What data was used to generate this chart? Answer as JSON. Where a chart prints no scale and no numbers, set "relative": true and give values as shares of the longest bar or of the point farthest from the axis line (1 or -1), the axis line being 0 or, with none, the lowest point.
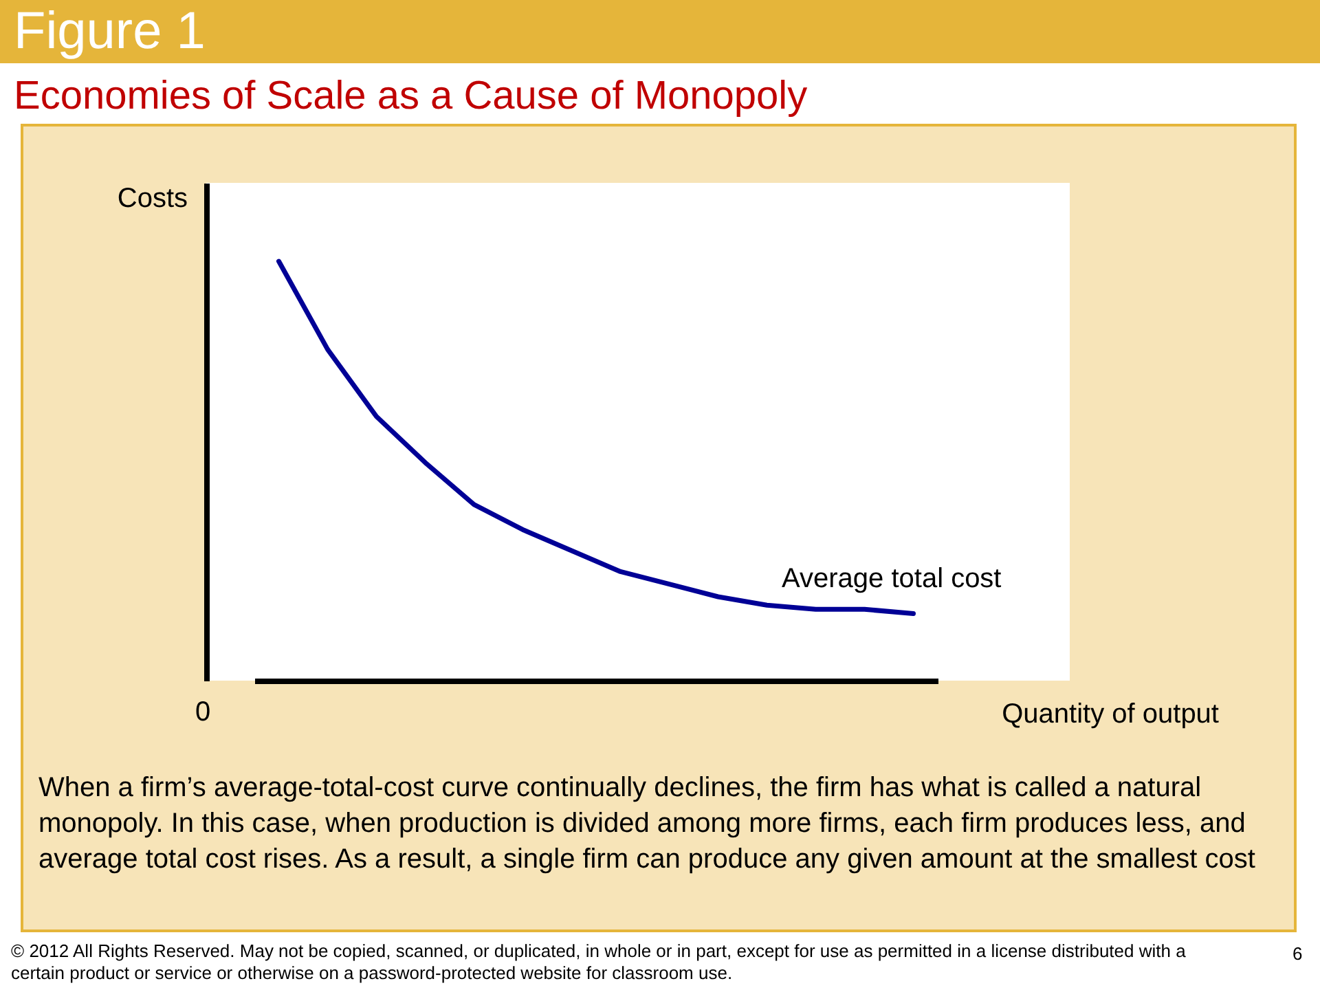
{
  "chart_data": {
    "type": "line",
    "title": "Figure 1",
    "subtitle": "Economies of Scale as a Cause of Monopoly",
    "xlabel": "Quantity of output",
    "ylabel": "Costs",
    "relative": true,
    "legend": false,
    "grid": false,
    "marker": "none",
    "line_style": "solid",
    "categories": [
      null,
      null,
      null,
      null,
      null,
      null,
      null,
      null,
      null,
      null,
      null,
      null,
      null,
      null
    ],
    "series": [
      {
        "name": "Average total cost",
        "color": "#000096",
        "values": [
          1,
          0.79,
          0.63,
          0.52,
          0.42,
          0.36,
          0.31,
          0.26,
          0.23,
          0.2,
          0.18,
          0.17,
          0.17,
          0.16
        ]
      }
    ],
    "annotations": [
      "0",
      "When a firm’s average-total-cost curve continually declines, the firm has what is called a natural monopoly. In this case, when production is divided among more firms, each firm produces less, and average total cost rises. As a result, a single firm can produce any given amount at the smallest cost",
      "© 2012 All Rights Reserved. May not be copied, scanned, or duplicated, in whole or in part, except for use as permitted in a license distributed with a certain product or service or otherwise on a password-protected website for classroom use.",
      "6"
    ]
  }
}
